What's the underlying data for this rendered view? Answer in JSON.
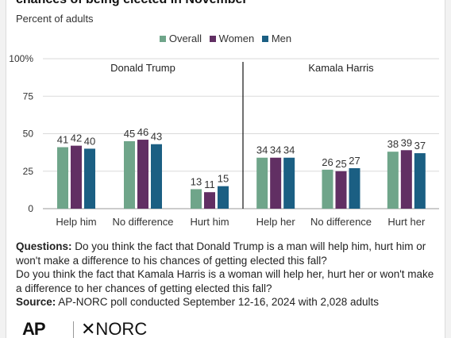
{
  "header": {
    "title": "chances of being elected in November",
    "subtitle": "Percent of adults"
  },
  "legend": [
    {
      "name": "Overall",
      "color": "#6fa58a"
    },
    {
      "name": "Women",
      "color": "#612f63"
    },
    {
      "name": "Men",
      "color": "#1b5f83"
    }
  ],
  "chart_data": {
    "type": "bar",
    "ylim": [
      0,
      100
    ],
    "yticks": [
      "0",
      "25",
      "50",
      "75",
      "100%"
    ],
    "grid": true,
    "legend_position": "top-center",
    "panels": [
      {
        "title": "Donald Trump",
        "categories": [
          "Help him",
          "No difference",
          "Hurt him"
        ],
        "series": [
          {
            "name": "Overall",
            "values": [
              41,
              45,
              13
            ]
          },
          {
            "name": "Women",
            "values": [
              42,
              46,
              11
            ]
          },
          {
            "name": "Men",
            "values": [
              40,
              43,
              15
            ]
          }
        ]
      },
      {
        "title": "Kamala Harris",
        "categories": [
          "Help her",
          "No difference",
          "Hurt her"
        ],
        "series": [
          {
            "name": "Overall",
            "values": [
              34,
              26,
              38
            ]
          },
          {
            "name": "Women",
            "values": [
              34,
              25,
              39
            ]
          },
          {
            "name": "Men",
            "values": [
              34,
              27,
              37
            ]
          }
        ]
      }
    ]
  },
  "notes": {
    "questions_label": "Questions:",
    "question_1": "Do you think the fact that Donald Trump is a man will help him, hurt him or won't make a difference to his chances of getting elected this fall?",
    "question_2": "Do you think the fact that Kamala Harris is a woman will help her, hurt her or won't make a difference to her chances of getting elected this fall?",
    "source_label": "Source:",
    "source": "AP-NORC poll conducted September 12-16, 2024 with 2,028 adults"
  },
  "logos": {
    "ap": "AP",
    "norc": "✕NORC"
  }
}
